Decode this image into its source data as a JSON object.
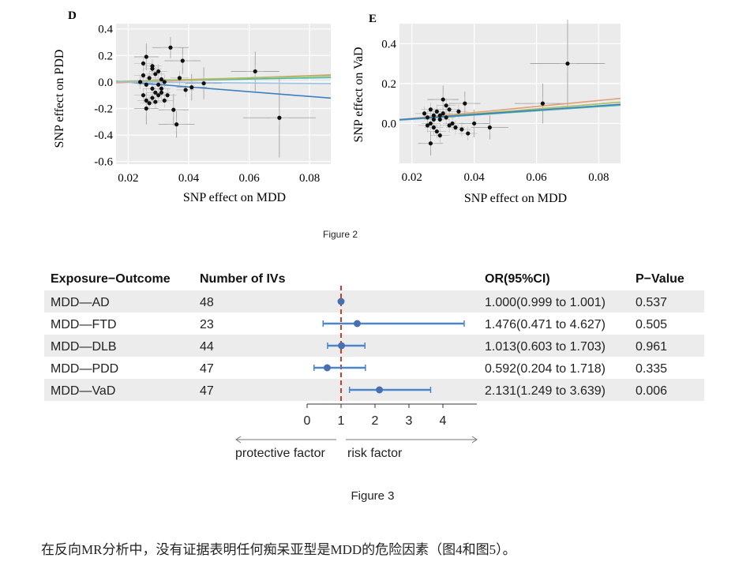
{
  "figure2_label": "Figure 2",
  "figure3_label": "Figure 3",
  "caption": "在反向MR分析中，没有证据表明任何痴呆亚型是MDD的危险因素（图4和图5）。",
  "chart_data": [
    {
      "type": "scatter",
      "panel_label": "D",
      "xlabel": "SNP effect on MDD",
      "ylabel": "SNP effect on PDD",
      "xlim": [
        0.016,
        0.087
      ],
      "ylim": [
        -0.62,
        0.44
      ],
      "xticks": [
        0.02,
        0.04,
        0.06,
        0.08
      ],
      "xtick_labels": [
        "0.02",
        "0.04",
        "0.06",
        "0.08"
      ],
      "yticks": [
        0.4,
        0.2,
        0.0,
        -0.2,
        -0.4,
        -0.6
      ],
      "ytick_labels": [
        "0.4",
        "0.2",
        "0.0",
        "-0.2",
        "-0.4",
        "-0.6"
      ],
      "grid": true,
      "lines": [
        {
          "color": "#3d7fc2",
          "intercept": 0.035,
          "slope": -1.8
        },
        {
          "color": "#4fb7a8",
          "intercept": -0.005,
          "slope": 0.45
        },
        {
          "color": "#e0a07a",
          "intercept": -0.02,
          "slope": 0.85
        },
        {
          "color": "#a8c060",
          "intercept": -0.005,
          "slope": 0.6
        },
        {
          "color": "#9ac2e6",
          "intercept": 0.005,
          "slope": -0.2
        }
      ],
      "points": [
        {
          "x": 0.025,
          "y": 0.14
        },
        {
          "x": 0.026,
          "y": 0.19
        },
        {
          "x": 0.028,
          "y": 0.1
        },
        {
          "x": 0.029,
          "y": 0.06
        },
        {
          "x": 0.03,
          "y": 0.08
        },
        {
          "x": 0.027,
          "y": 0.03
        },
        {
          "x": 0.026,
          "y": -0.02
        },
        {
          "x": 0.028,
          "y": -0.05
        },
        {
          "x": 0.03,
          "y": -0.02
        },
        {
          "x": 0.031,
          "y": 0.02
        },
        {
          "x": 0.032,
          "y": 0.0
        },
        {
          "x": 0.025,
          "y": -0.1
        },
        {
          "x": 0.026,
          "y": -0.14
        },
        {
          "x": 0.028,
          "y": -0.12
        },
        {
          "x": 0.029,
          "y": -0.08
        },
        {
          "x": 0.03,
          "y": -0.1
        },
        {
          "x": 0.031,
          "y": -0.08
        },
        {
          "x": 0.027,
          "y": -0.16
        },
        {
          "x": 0.026,
          "y": -0.2
        },
        {
          "x": 0.032,
          "y": -0.14
        },
        {
          "x": 0.033,
          "y": -0.1
        },
        {
          "x": 0.034,
          "y": 0.26
        },
        {
          "x": 0.038,
          "y": 0.16
        },
        {
          "x": 0.037,
          "y": 0.03
        },
        {
          "x": 0.039,
          "y": -0.06
        },
        {
          "x": 0.035,
          "y": -0.21
        },
        {
          "x": 0.036,
          "y": -0.32
        },
        {
          "x": 0.041,
          "y": -0.04
        },
        {
          "x": 0.045,
          "y": -0.01
        },
        {
          "x": 0.062,
          "y": 0.08
        },
        {
          "x": 0.07,
          "y": -0.27
        },
        {
          "x": 0.025,
          "y": 0.05
        },
        {
          "x": 0.024,
          "y": 0.0
        },
        {
          "x": 0.028,
          "y": 0.12
        },
        {
          "x": 0.029,
          "y": -0.15
        },
        {
          "x": 0.031,
          "y": -0.05
        }
      ],
      "errorbars": [
        {
          "x": 0.034,
          "y": 0.26,
          "xerr": 0.006,
          "yerr": 0.08
        },
        {
          "x": 0.038,
          "y": 0.16,
          "xerr": 0.006,
          "yerr": 0.1
        },
        {
          "x": 0.036,
          "y": -0.32,
          "xerr": 0.006,
          "yerr": 0.1
        },
        {
          "x": 0.035,
          "y": -0.21,
          "xerr": 0.005,
          "yerr": 0.12
        },
        {
          "x": 0.062,
          "y": 0.08,
          "xerr": 0.008,
          "yerr": 0.15
        },
        {
          "x": 0.07,
          "y": -0.27,
          "xerr": 0.012,
          "yerr": 0.3
        },
        {
          "x": 0.045,
          "y": -0.01,
          "xerr": 0.006,
          "yerr": 0.12
        },
        {
          "x": 0.041,
          "y": -0.04,
          "xerr": 0.005,
          "yerr": 0.1
        },
        {
          "x": 0.026,
          "y": 0.19,
          "xerr": 0.004,
          "yerr": 0.1
        },
        {
          "x": 0.026,
          "y": -0.2,
          "xerr": 0.004,
          "yerr": 0.12
        }
      ]
    },
    {
      "type": "scatter",
      "panel_label": "E",
      "xlabel": "SNP effect on MDD",
      "ylabel": "SNP effect on VaD",
      "xlim": [
        0.016,
        0.087
      ],
      "ylim": [
        -0.2,
        0.5
      ],
      "xticks": [
        0.02,
        0.04,
        0.06,
        0.08
      ],
      "xtick_labels": [
        "0.02",
        "0.04",
        "0.06",
        "0.08"
      ],
      "yticks": [
        0.4,
        0.2,
        0.0
      ],
      "ytick_labels": [
        "0.4",
        "0.2",
        "0.0"
      ],
      "grid": true,
      "lines": [
        {
          "color": "#e0a07a",
          "intercept": -0.005,
          "slope": 1.5
        },
        {
          "color": "#a8c060",
          "intercept": -0.002,
          "slope": 1.25
        },
        {
          "color": "#4fb7a8",
          "intercept": 0.0,
          "slope": 1.05
        },
        {
          "color": "#3d7fc2",
          "intercept": 0.002,
          "slope": 1.08
        }
      ],
      "points": [
        {
          "x": 0.024,
          "y": 0.05
        },
        {
          "x": 0.025,
          "y": 0.03
        },
        {
          "x": 0.026,
          "y": 0.07
        },
        {
          "x": 0.027,
          "y": 0.04
        },
        {
          "x": 0.028,
          "y": 0.06
        },
        {
          "x": 0.029,
          "y": 0.02
        },
        {
          "x": 0.03,
          "y": 0.05
        },
        {
          "x": 0.031,
          "y": 0.03
        },
        {
          "x": 0.032,
          "y": 0.07
        },
        {
          "x": 0.026,
          "y": 0.0
        },
        {
          "x": 0.027,
          "y": -0.02
        },
        {
          "x": 0.028,
          "y": -0.04
        },
        {
          "x": 0.029,
          "y": -0.06
        },
        {
          "x": 0.025,
          "y": -0.01
        },
        {
          "x": 0.033,
          "y": 0.0
        },
        {
          "x": 0.034,
          "y": -0.02
        },
        {
          "x": 0.03,
          "y": 0.12
        },
        {
          "x": 0.031,
          "y": 0.09
        },
        {
          "x": 0.035,
          "y": 0.06
        },
        {
          "x": 0.037,
          "y": 0.1
        },
        {
          "x": 0.036,
          "y": -0.03
        },
        {
          "x": 0.026,
          "y": -0.1
        },
        {
          "x": 0.04,
          "y": 0.0
        },
        {
          "x": 0.045,
          "y": -0.02
        },
        {
          "x": 0.038,
          "y": -0.05
        },
        {
          "x": 0.062,
          "y": 0.1
        },
        {
          "x": 0.07,
          "y": 0.3
        },
        {
          "x": 0.029,
          "y": 0.04
        },
        {
          "x": 0.032,
          "y": -0.01
        },
        {
          "x": 0.027,
          "y": 0.02
        }
      ],
      "errorbars": [
        {
          "x": 0.07,
          "y": 0.3,
          "xerr": 0.012,
          "yerr": 0.22
        },
        {
          "x": 0.062,
          "y": 0.1,
          "xerr": 0.009,
          "yerr": 0.1
        },
        {
          "x": 0.045,
          "y": -0.02,
          "xerr": 0.006,
          "yerr": 0.06
        },
        {
          "x": 0.04,
          "y": 0.0,
          "xerr": 0.005,
          "yerr": 0.07
        },
        {
          "x": 0.037,
          "y": 0.1,
          "xerr": 0.005,
          "yerr": 0.06
        },
        {
          "x": 0.03,
          "y": 0.12,
          "xerr": 0.005,
          "yerr": 0.07
        },
        {
          "x": 0.026,
          "y": -0.1,
          "xerr": 0.004,
          "yerr": 0.06
        }
      ]
    },
    {
      "type": "table",
      "subtype": "forest",
      "columns": [
        "Exposure−Outcome",
        "Number of IVs",
        "OR(95%CI)",
        "P−Value"
      ],
      "rows": [
        {
          "exposure_outcome": "MDD—AD",
          "n_ivs": "48",
          "or_ci": "1.000(0.999 to 1.001)",
          "p": "0.537",
          "or": 1.0,
          "lower": 0.999,
          "upper": 1.001
        },
        {
          "exposure_outcome": "MDD—FTD",
          "n_ivs": "23",
          "or_ci": "1.476(0.471 to 4.627)",
          "p": "0.505",
          "or": 1.476,
          "lower": 0.471,
          "upper": 4.627
        },
        {
          "exposure_outcome": "MDD—DLB",
          "n_ivs": "44",
          "or_ci": "1.013(0.603 to 1.703)",
          "p": "0.961",
          "or": 1.013,
          "lower": 0.603,
          "upper": 1.703
        },
        {
          "exposure_outcome": "MDD—PDD",
          "n_ivs": "47",
          "or_ci": "0.592(0.204 to 1.718)",
          "p": "0.335",
          "or": 0.592,
          "lower": 0.204,
          "upper": 1.718
        },
        {
          "exposure_outcome": "MDD—VaD",
          "n_ivs": "47",
          "or_ci": "2.131(1.249 to 3.639)",
          "p": "0.006",
          "or": 2.131,
          "lower": 1.249,
          "upper": 3.639
        }
      ],
      "xlim": [
        0,
        5
      ],
      "xticks": [
        0,
        1,
        2,
        3,
        4
      ],
      "xtick_labels": [
        "0",
        "1",
        "2",
        "3",
        "4"
      ],
      "reference_line": 1,
      "left_label": "protective factor",
      "right_label": "risk factor",
      "colors": {
        "point": "#4a6fb0",
        "ci": "#4a86c8",
        "ref": "#d93a2b",
        "stripe": "#ececec"
      }
    }
  ]
}
